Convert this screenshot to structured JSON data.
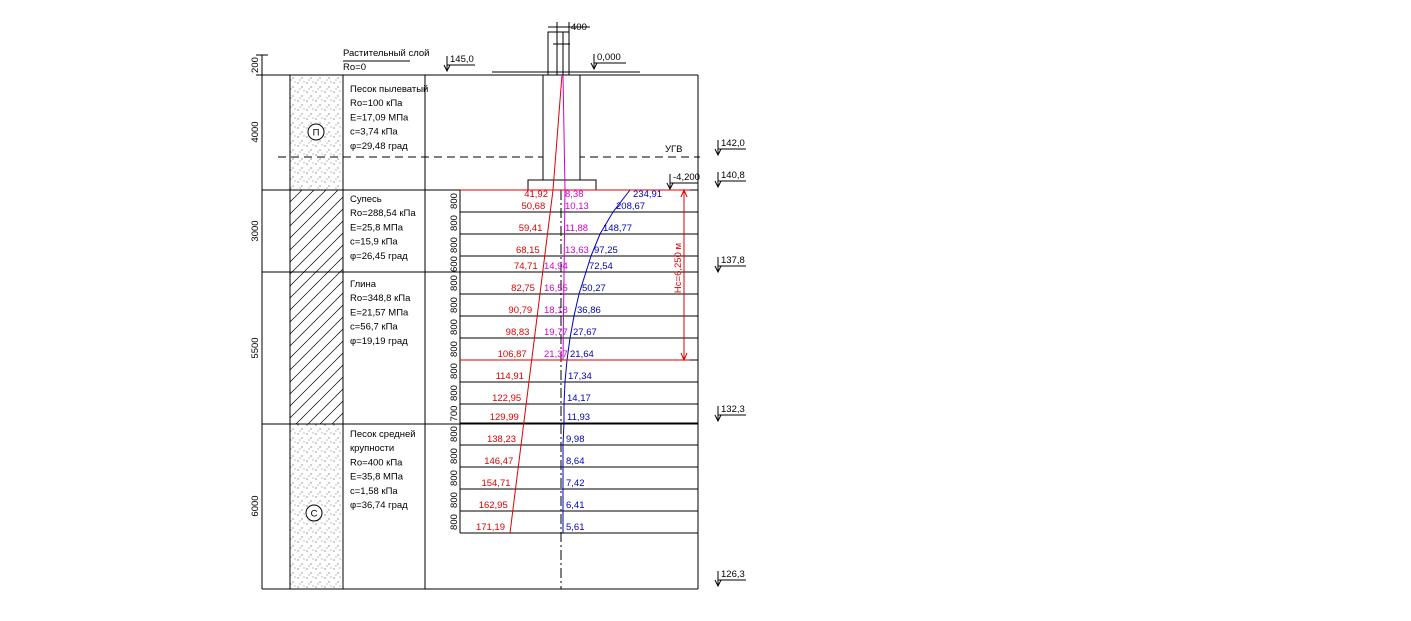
{
  "dimensions": [
    "200",
    "4000",
    "3000",
    "5500",
    "6000"
  ],
  "layers": [
    {
      "lines": [
        "Растительный слой",
        "Ro=0"
      ]
    },
    {
      "lines": [
        "Песок пылеватый",
        "Ro=100 кПа",
        "E=17,09 МПа",
        "c=3,74 кПа",
        "φ=29,48 град"
      ]
    },
    {
      "lines": [
        "Супесь",
        "Ro=288,54 кПа",
        "E=25,8 МПа",
        "c=15,9 кПа",
        "φ=26,45 град"
      ]
    },
    {
      "lines": [
        "Глина",
        "Ro=348,8 кПа",
        "E=21,57 МПа",
        "c=56,7 кПа",
        "φ=19,19 град"
      ]
    },
    {
      "lines": [
        "Песок средней",
        "крупности",
        "Ro=400 кПа",
        "E=35,8 МПа",
        "c=1,58 кПа",
        "φ=36,74 град"
      ]
    }
  ],
  "markers": [
    "П",
    "С"
  ],
  "elevations": {
    "ground": "145,0",
    "zero": "0,000",
    "ugv": "142,0",
    "foundation": "-4,200",
    "layer1_bottom": "140,8",
    "layer2_bottom": "137,8",
    "layer3_bottom": "132,3",
    "layer4_bottom": "126,3"
  },
  "labels": {
    "ugv": "УГВ",
    "column_width": "400",
    "hc": "Hc=6,250 м"
  },
  "sublayers": {
    "thickness": [
      "800",
      "800",
      "800",
      "600",
      "800",
      "800",
      "800",
      "800",
      "800",
      "800",
      "700",
      "800",
      "800",
      "800",
      "800",
      "800"
    ],
    "sigma_zg": [
      "41,92",
      "50,68",
      "59,41",
      "68,15",
      "74,71",
      "82,75",
      "90,79",
      "98,83",
      "106,87",
      "114,91",
      "122,95",
      "129,99",
      "138,23",
      "146,47",
      "154,71",
      "162,95",
      "171,19"
    ],
    "sigma_zp": [
      "234,91",
      "208,67",
      "148,77",
      "97,25",
      "72,54",
      "50,27",
      "36,86",
      "27,67",
      "21,64",
      "17,34",
      "14,17",
      "11,93",
      "9,98",
      "8,64",
      "7,42",
      "6,41",
      "5,61"
    ],
    "sigma_zgw": [
      "8,38",
      "10,13",
      "11,88",
      "13,63",
      "14,94",
      "16,55",
      "18,18",
      "19,77",
      "21,37"
    ]
  }
}
